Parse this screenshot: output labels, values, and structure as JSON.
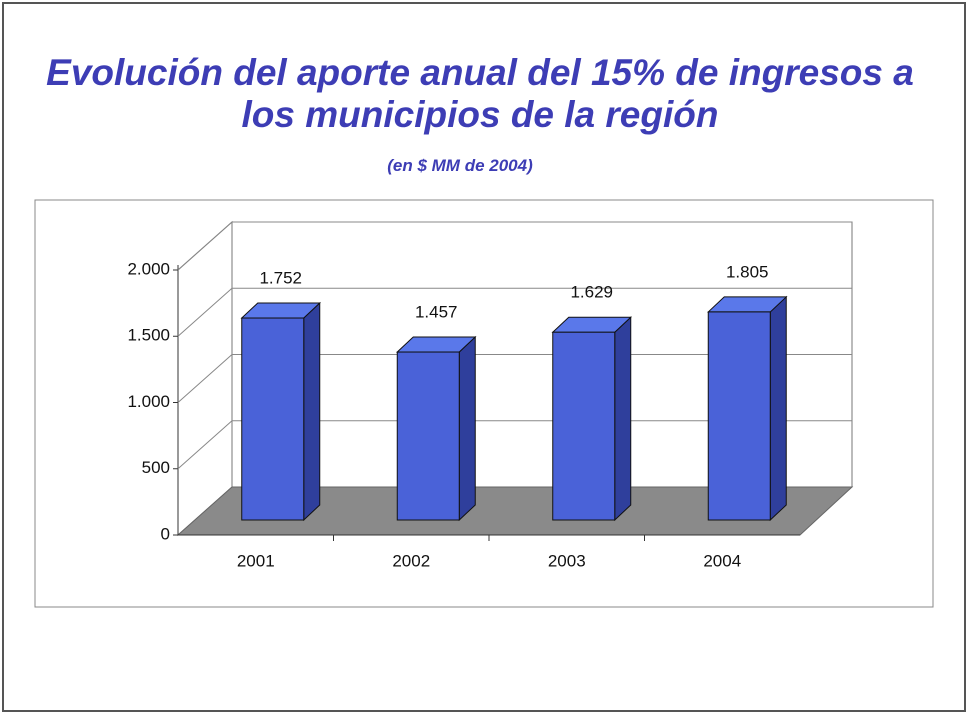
{
  "chart_data": {
    "type": "bar3d",
    "title": "Evolución del aporte anual del 15% de ingresos a los municipios de la región",
    "subtitle": "(en $ MM de 2004)",
    "categories": [
      "2001",
      "2002",
      "2003",
      "2004"
    ],
    "values": [
      1752,
      1457,
      1629,
      1805
    ],
    "value_labels": [
      "1.752",
      "1.457",
      "1.629",
      "1.805"
    ],
    "color": "#4a62d8",
    "ylim": [
      0,
      2000
    ],
    "yticks": [
      0,
      500,
      {
        "value": 1000,
        "label": "1.000"
      },
      {
        "value": 1500,
        "label": "1.500"
      },
      {
        "value": 2000,
        "label": "2.000"
      }
    ],
    "grid": true
  }
}
